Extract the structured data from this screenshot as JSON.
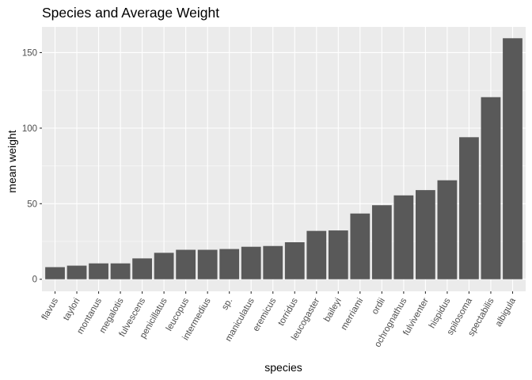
{
  "chart_data": {
    "type": "bar",
    "title": "Species and Average Weight",
    "xlabel": "species",
    "ylabel": "mean weight",
    "categories": [
      "flavus",
      "taylori",
      "montanus",
      "megalotis",
      "fulvescens",
      "penicillatus",
      "leucopus",
      "intermedius",
      "sp.",
      "maniculatus",
      "eremicus",
      "torridus",
      "leucogaster",
      "baileyi",
      "merriami",
      "ordii",
      "ochrognathus",
      "fulviventer",
      "hispidus",
      "spilosoma",
      "spectabilis",
      "albigula"
    ],
    "values": [
      8,
      9,
      10.5,
      10.5,
      13.8,
      17.5,
      19.5,
      19.5,
      20,
      21.5,
      22,
      24.5,
      32,
      32.3,
      43.5,
      49,
      55.5,
      59,
      65.5,
      94,
      120.5,
      159.5
    ],
    "yticks": [
      0,
      50,
      100,
      150
    ],
    "ylim": [
      -8,
      167
    ],
    "grid": true,
    "colors": {
      "bar": "#595959",
      "panel": "#ebebeb",
      "grid_major": "#ffffff",
      "axis_text": "#4d4d4d"
    }
  }
}
